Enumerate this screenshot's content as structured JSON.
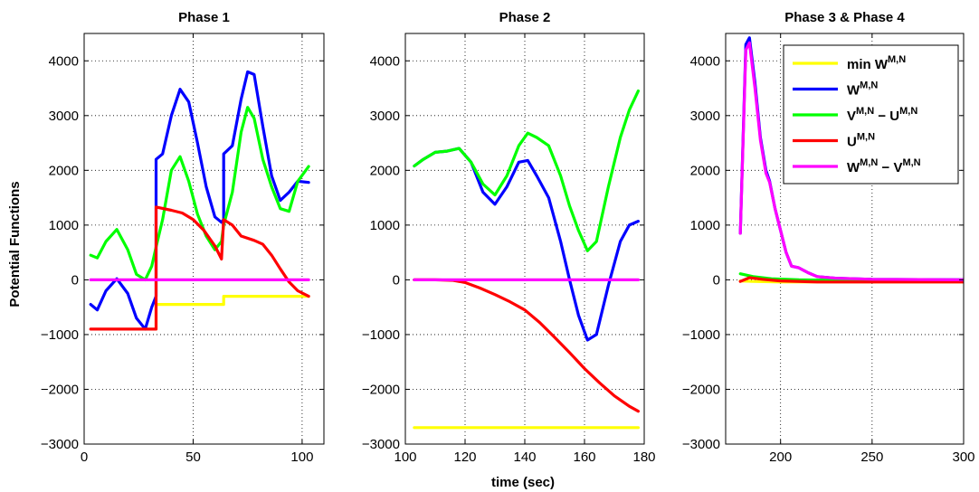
{
  "figure": {
    "ylabel": "Potential Functions",
    "xlabel": "time (sec)"
  },
  "legend": {
    "items": [
      {
        "base": "min W",
        "sup": "M,N",
        "color": "#ffff00"
      },
      {
        "base": "W",
        "sup": "M,N",
        "color": "#0000ff"
      },
      {
        "base": "V",
        "sup": "M,N",
        "mid": " − U",
        "sup2": "M,N",
        "color": "#00ff00"
      },
      {
        "base": "U",
        "sup": "M,N",
        "color": "#ff0000"
      },
      {
        "base": "W",
        "sup": "M,N",
        "mid": " − V",
        "sup2": "M,N",
        "color": "#ff00ff"
      }
    ]
  },
  "chart_data": [
    {
      "type": "line",
      "title": "Phase 1",
      "xlim": [
        0,
        110
      ],
      "ylim": [
        -3000,
        4500
      ],
      "xticks": [
        0,
        50,
        100
      ],
      "yticks": [
        -3000,
        -2000,
        -1000,
        0,
        1000,
        2000,
        3000,
        4000
      ],
      "grid": true,
      "series": [
        {
          "color": "#ffff00",
          "x": [
            33,
            33,
            64,
            64,
            103
          ],
          "y": [
            -900,
            -450,
            -450,
            -300,
            -300
          ]
        },
        {
          "color": "#0000ff",
          "x": [
            3,
            6,
            10,
            15,
            20,
            24,
            28,
            31,
            33,
            33,
            36,
            40,
            44,
            48,
            52,
            56,
            60,
            63,
            64,
            64,
            68,
            72,
            75,
            78,
            82,
            86,
            90,
            94,
            98,
            103
          ],
          "y": [
            -450,
            -550,
            -200,
            20,
            -250,
            -700,
            -900,
            -500,
            -300,
            2200,
            2300,
            3000,
            3480,
            3250,
            2500,
            1700,
            1150,
            1050,
            1100,
            2300,
            2450,
            3300,
            3800,
            3750,
            2800,
            1900,
            1450,
            1600,
            1800,
            1780
          ]
        },
        {
          "color": "#00ff00",
          "x": [
            3,
            6,
            10,
            15,
            20,
            24,
            28,
            31,
            33,
            36,
            40,
            44,
            48,
            52,
            56,
            60,
            63,
            64,
            68,
            72,
            75,
            78,
            82,
            86,
            90,
            94,
            98,
            103
          ],
          "y": [
            450,
            400,
            700,
            920,
            550,
            100,
            0,
            250,
            600,
            1100,
            2000,
            2250,
            1800,
            1200,
            800,
            550,
            700,
            1000,
            1600,
            2700,
            3150,
            2950,
            2200,
            1700,
            1300,
            1250,
            1800,
            2070
          ]
        },
        {
          "color": "#ff0000",
          "x": [
            3,
            10,
            20,
            33,
            33,
            40,
            45,
            50,
            55,
            60,
            63,
            64,
            68,
            72,
            78,
            82,
            86,
            90,
            94,
            98,
            103
          ],
          "y": [
            -900,
            -900,
            -900,
            -900,
            1330,
            1270,
            1220,
            1100,
            900,
            620,
            380,
            1100,
            1000,
            800,
            720,
            650,
            450,
            200,
            -40,
            -200,
            -300
          ]
        },
        {
          "color": "#ff00ff",
          "x": [
            3,
            103
          ],
          "y": [
            0,
            0
          ]
        }
      ]
    },
    {
      "type": "line",
      "title": "Phase 2",
      "xlim": [
        100,
        180
      ],
      "ylim": [
        -3000,
        4500
      ],
      "xticks": [
        100,
        120,
        140,
        160,
        180
      ],
      "yticks": [
        -3000,
        -2000,
        -1000,
        0,
        1000,
        2000,
        3000,
        4000
      ],
      "grid": true,
      "series": [
        {
          "color": "#ffff00",
          "x": [
            103,
            178
          ],
          "y": [
            -2700,
            -2700
          ]
        },
        {
          "color": "#0000ff",
          "x": [
            103,
            106,
            110,
            114,
            118,
            122,
            126,
            130,
            134,
            138,
            141,
            144,
            148,
            152,
            155,
            158,
            161,
            164,
            168,
            172,
            175,
            178
          ],
          "y": [
            2080,
            2200,
            2330,
            2350,
            2400,
            2150,
            1600,
            1380,
            1700,
            2150,
            2180,
            1900,
            1500,
            700,
            0,
            -650,
            -1100,
            -1000,
            -100,
            700,
            1000,
            1070
          ]
        },
        {
          "color": "#00ff00",
          "x": [
            103,
            106,
            110,
            114,
            118,
            122,
            126,
            130,
            134,
            138,
            141,
            144,
            148,
            152,
            155,
            158,
            161,
            164,
            168,
            172,
            175,
            178
          ],
          "y": [
            2080,
            2200,
            2330,
            2350,
            2400,
            2150,
            1750,
            1550,
            1900,
            2450,
            2680,
            2600,
            2450,
            1900,
            1350,
            900,
            530,
            700,
            1700,
            2600,
            3100,
            3450
          ]
        },
        {
          "color": "#ff0000",
          "x": [
            103,
            110,
            116,
            120,
            125,
            130,
            135,
            140,
            145,
            150,
            155,
            160,
            165,
            170,
            175,
            178
          ],
          "y": [
            0,
            0,
            -10,
            -50,
            -150,
            -270,
            -400,
            -550,
            -780,
            -1050,
            -1330,
            -1620,
            -1880,
            -2120,
            -2310,
            -2400
          ]
        },
        {
          "color": "#ff00ff",
          "x": [
            103,
            178
          ],
          "y": [
            0,
            0
          ]
        }
      ]
    },
    {
      "type": "line",
      "title": "Phase 3 & Phase 4",
      "xlim": [
        170,
        300
      ],
      "ylim": [
        -3000,
        4500
      ],
      "xticks": [
        200,
        250,
        300
      ],
      "yticks": [
        -3000,
        -2000,
        -1000,
        0,
        1000,
        2000,
        3000,
        4000
      ],
      "grid": true,
      "legend": "top-right",
      "series": [
        {
          "color": "#ffff00",
          "x": [
            178,
            185,
            200,
            230,
            260,
            300
          ],
          "y": [
            -20,
            -30,
            -40,
            -40,
            -40,
            -40
          ]
        },
        {
          "color": "#0000ff",
          "x": [
            178,
            181,
            183,
            186,
            189,
            192,
            194,
            197,
            200,
            203,
            206,
            210,
            215,
            220,
            230,
            250,
            300
          ],
          "y": [
            850,
            4300,
            4420,
            3600,
            2600,
            2000,
            1800,
            1300,
            900,
            500,
            250,
            220,
            130,
            60,
            30,
            10,
            0
          ]
        },
        {
          "color": "#00ff00",
          "x": [
            178,
            185,
            195,
            210,
            240,
            300
          ],
          "y": [
            110,
            60,
            20,
            0,
            -10,
            -10
          ]
        },
        {
          "color": "#ff0000",
          "x": [
            178,
            183,
            190,
            200,
            220,
            260,
            300
          ],
          "y": [
            -30,
            40,
            10,
            -20,
            -40,
            -40,
            -40
          ]
        },
        {
          "color": "#ff00ff",
          "x": [
            178,
            181,
            183,
            186,
            189,
            192,
            194,
            197,
            200,
            203,
            206,
            210,
            215,
            220,
            230,
            250,
            300
          ],
          "y": [
            850,
            4200,
            4330,
            3500,
            2550,
            1950,
            1780,
            1300,
            900,
            500,
            250,
            220,
            130,
            60,
            30,
            10,
            0
          ]
        }
      ]
    }
  ]
}
